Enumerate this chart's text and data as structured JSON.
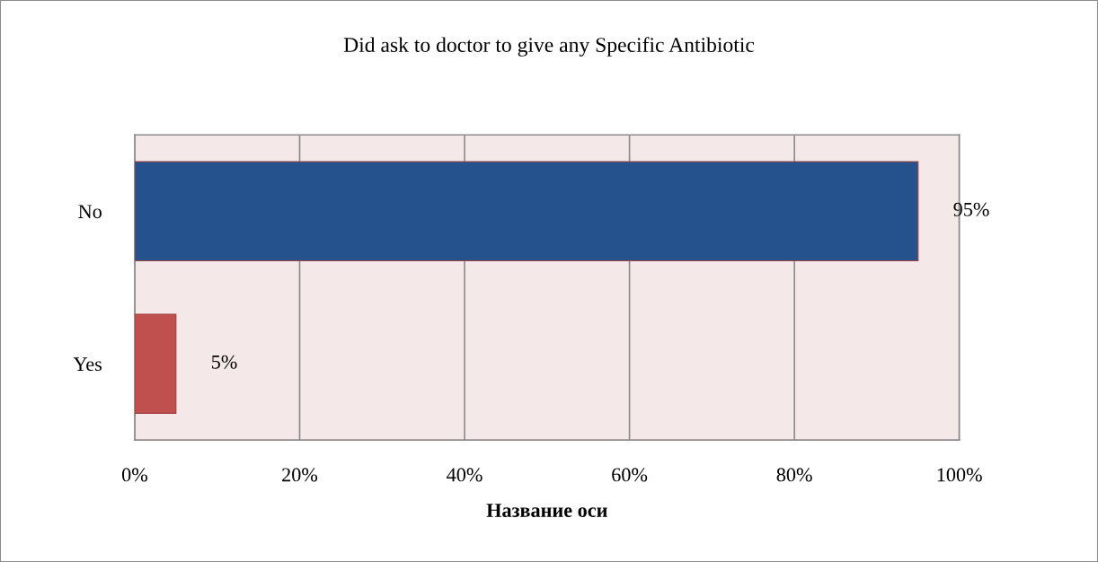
{
  "chart_data": {
    "type": "bar",
    "orientation": "horizontal",
    "title": "Did ask to doctor to give any Specific Antibiotic",
    "xlabel": "Название оси",
    "categories": [
      "No",
      "Yes"
    ],
    "values": [
      95,
      5
    ],
    "colors": [
      "#25528c",
      "#c0504d"
    ],
    "value_labels": [
      "95%",
      "5%"
    ],
    "xlim": [
      0,
      100
    ],
    "xticks": [
      {
        "value": 0,
        "label": "0%"
      },
      {
        "value": 20,
        "label": "20%"
      },
      {
        "value": 40,
        "label": "40%"
      },
      {
        "value": 60,
        "label": "60%"
      },
      {
        "value": 80,
        "label": "80%"
      },
      {
        "value": 100,
        "label": "100%"
      }
    ],
    "grid": "x"
  }
}
